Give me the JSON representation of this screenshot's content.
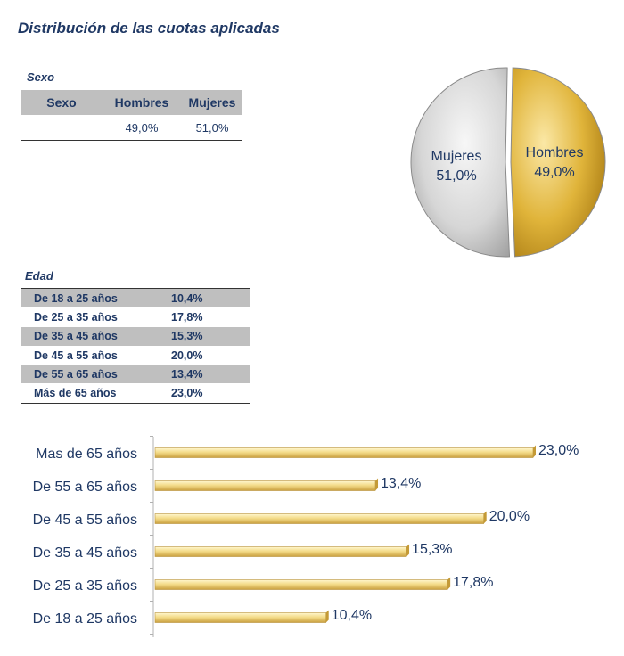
{
  "title": "Distribución de las cuotas aplicadas",
  "sexo": {
    "label": "Sexo",
    "headers": [
      "Sexo",
      "Hombres",
      "Mujeres"
    ],
    "values": [
      "",
      "49,0%",
      "51,0%"
    ]
  },
  "edad": {
    "label": "Edad",
    "rows": [
      {
        "label": "De 18 a 25 años",
        "value": "10,4%"
      },
      {
        "label": "De 25 a 35 años",
        "value": "17,8%"
      },
      {
        "label": "De 35 a 45 años",
        "value": "15,3%"
      },
      {
        "label": "De 45 a 55 años",
        "value": "20,0%"
      },
      {
        "label": "De 55 a 65 años",
        "value": "13,4%"
      },
      {
        "label": "Más de 65 años",
        "value": "23,0%"
      }
    ]
  },
  "colors": {
    "text": "#1f3864",
    "gold": "#d4a520",
    "silver": "#c8c8c8"
  },
  "chart_data": [
    {
      "type": "pie",
      "title": "",
      "slices": [
        {
          "name": "Hombres",
          "value": 49.0,
          "label": "Hombres",
          "value_label": "49,0%"
        },
        {
          "name": "Mujeres",
          "value": 51.0,
          "label": "Mujeres",
          "value_label": "51,0%"
        }
      ]
    },
    {
      "type": "bar",
      "orientation": "horizontal",
      "categories": [
        "Mas de 65 años",
        "De 55 a 65 años",
        "De 45 a 55 años",
        "De 35 a 45 años",
        "De 25 a 35 años",
        "De 18 a 25 años"
      ],
      "values": [
        23.0,
        13.4,
        20.0,
        15.3,
        17.8,
        10.4
      ],
      "value_labels": [
        "23,0%",
        "13,4%",
        "20,0%",
        "15,3%",
        "17,8%",
        "10,4%"
      ],
      "xlim": [
        0,
        23
      ]
    }
  ]
}
